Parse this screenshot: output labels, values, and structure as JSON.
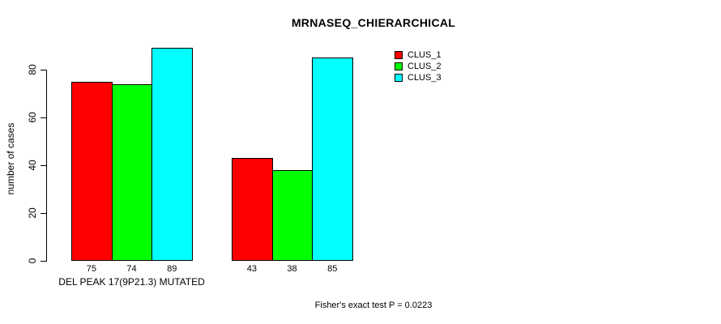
{
  "chart_data": {
    "type": "bar",
    "title": "MRNASEQ_CHIERARCHICAL",
    "ylabel": "number of cases",
    "xlabel": "",
    "yticks": [
      0,
      20,
      40,
      60,
      80
    ],
    "ylim": [
      0,
      89
    ],
    "grid": false,
    "legend_position": "top-right-inside",
    "bar_value_labels_shown": true,
    "categories": [
      "DEL PEAK 17(9P21.3) MUTATED",
      ""
    ],
    "series": [
      {
        "name": "CLUS_1",
        "color": "#ff0000",
        "values": [
          75,
          43
        ]
      },
      {
        "name": "CLUS_2",
        "color": "#00ff00",
        "values": [
          74,
          38
        ]
      },
      {
        "name": "CLUS_3",
        "color": "#00ffff",
        "values": [
          89,
          85
        ]
      }
    ],
    "footnote": "Fisher's exact test P = 0.0223"
  },
  "colors": {
    "background": "#ffffff",
    "axis": "#000000",
    "text": "#000000",
    "bar_border": "#000000"
  }
}
